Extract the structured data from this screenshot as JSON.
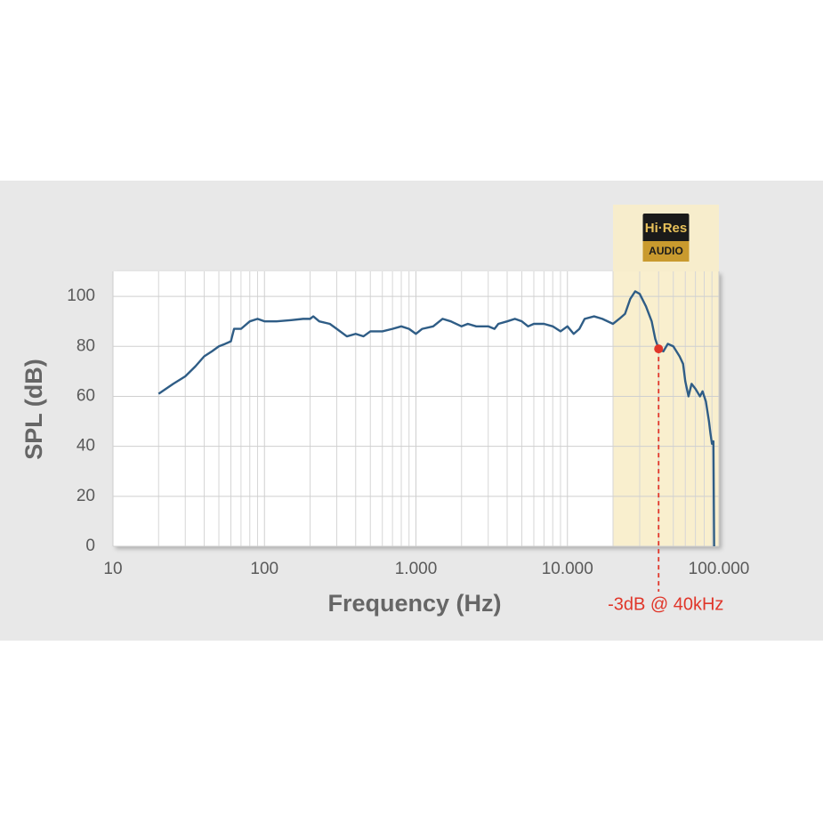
{
  "chart_data": {
    "type": "line",
    "xlabel": "Frequency (Hz)",
    "ylabel": "SPL (dB)",
    "xscale": "log",
    "xlim": [
      10,
      100000
    ],
    "ylim": [
      0,
      110
    ],
    "xticks": [
      10,
      100,
      {
        "value": 1000,
        "label": "1.000"
      },
      {
        "value": 10000,
        "label": "10.000"
      },
      {
        "value": 100000,
        "label": "100.000"
      }
    ],
    "yticks": [
      0,
      20,
      40,
      60,
      80,
      100
    ],
    "grid": true,
    "color": "#2f5d86",
    "x": [
      20,
      25,
      30,
      35,
      40,
      45,
      50,
      55,
      60,
      63,
      70,
      80,
      90,
      100,
      120,
      150,
      180,
      200,
      210,
      230,
      270,
      300,
      350,
      400,
      450,
      500,
      600,
      700,
      800,
      900,
      1000,
      1100,
      1300,
      1500,
      1700,
      2000,
      2200,
      2500,
      3000,
      3300,
      3500,
      4000,
      4500,
      5000,
      5500,
      6000,
      7000,
      8000,
      9000,
      10000,
      11000,
      12000,
      13000,
      15000,
      17000,
      20000,
      22000,
      24000,
      26000,
      28000,
      30000,
      33000,
      36000,
      38000,
      40000,
      43000,
      46000,
      50000,
      55000,
      58000,
      60000,
      63000,
      66000,
      70000,
      75000,
      78000,
      82000,
      86000,
      88000,
      90000,
      92000,
      93000
    ],
    "values": [
      61,
      65,
      68,
      72,
      76,
      78,
      80,
      81,
      82,
      87,
      87,
      90,
      91,
      90,
      90,
      90.5,
      91,
      91,
      92,
      90,
      89,
      87,
      84,
      85,
      84,
      86,
      86,
      87,
      88,
      87,
      85,
      87,
      88,
      91,
      90,
      88,
      89,
      88,
      88,
      87,
      89,
      90,
      91,
      90,
      88,
      89,
      89,
      88,
      86,
      88,
      85,
      87,
      91,
      92,
      91,
      89,
      91,
      93,
      99,
      102,
      101,
      96,
      90,
      83,
      79,
      78,
      81,
      80,
      76,
      73,
      66,
      60,
      65,
      63,
      60,
      62,
      58,
      50,
      45,
      41,
      42,
      0
    ],
    "highlight": {
      "xlim": [
        20000,
        100000
      ],
      "color": "#f8edc9",
      "logo_top": "Hi·Res",
      "logo_bottom": "AUDIO"
    },
    "annotation": {
      "text": "-3dB @ 40kHz",
      "x": 40000,
      "y": 79,
      "color": "#e0362a"
    }
  }
}
